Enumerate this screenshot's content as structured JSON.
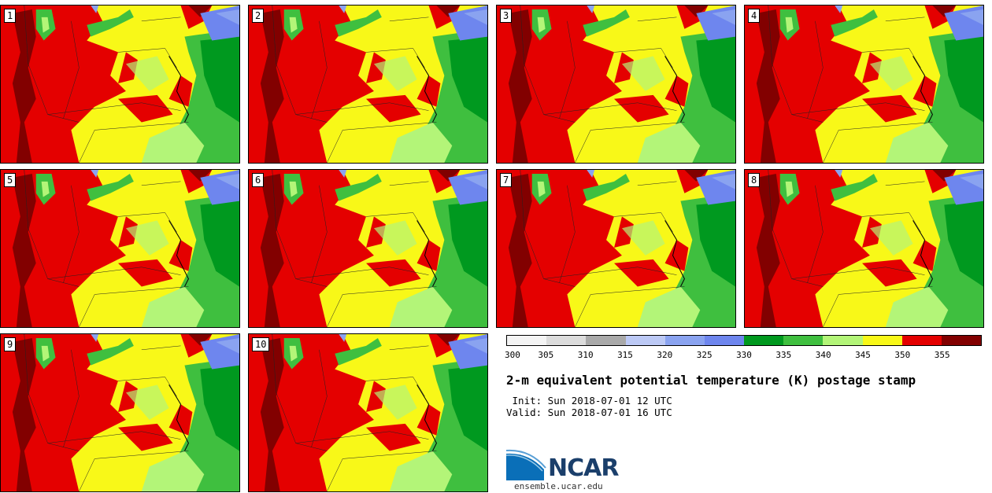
{
  "panels": [
    "1",
    "2",
    "3",
    "4",
    "5",
    "6",
    "7",
    "8",
    "9",
    "10"
  ],
  "colorbar": {
    "colors": [
      "#f4f4f4",
      "#dcdcdc",
      "#a9a9a9",
      "#bcc9f5",
      "#8aa3f0",
      "#6e86ee",
      "#00991f",
      "#3fbf3f",
      "#b3f578",
      "#f8f818",
      "#e40000",
      "#820000"
    ],
    "labels": [
      "300",
      "305",
      "310",
      "315",
      "320",
      "325",
      "330",
      "335",
      "340",
      "345",
      "350",
      "355"
    ]
  },
  "title": "2-m equivalent potential temperature (K) postage stamp",
  "init": " Init: Sun 2018-07-01 12 UTC",
  "valid": "Valid: Sun 2018-07-01 16 UTC",
  "logo_text": "NCAR",
  "website": "ensemble.ucar.edu"
}
